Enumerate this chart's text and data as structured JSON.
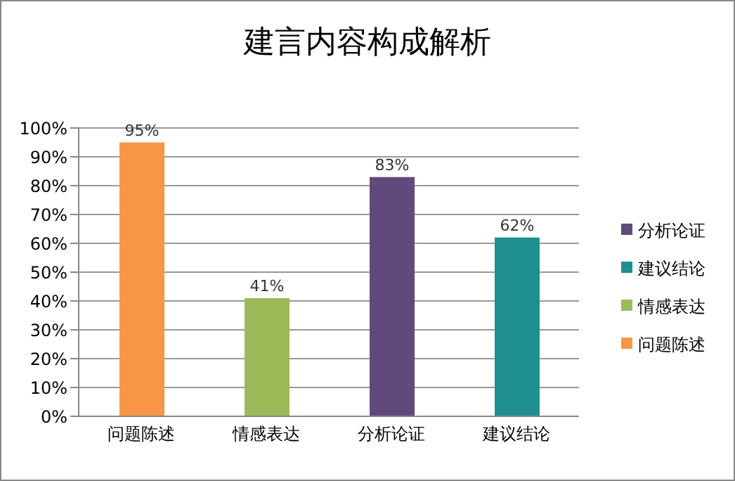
{
  "chart_data": {
    "type": "bar",
    "title": "建言内容构成解析",
    "categories": [
      "问题陈述",
      "情感表达",
      "分析论证",
      "建议结论"
    ],
    "series": [
      {
        "name": "问题陈述",
        "color": "#f79646",
        "values": [
          95,
          null,
          null,
          null
        ],
        "value_labels": [
          "95%",
          null,
          null,
          null
        ]
      },
      {
        "name": "情感表达",
        "color": "#9bbb59",
        "values": [
          null,
          41,
          null,
          null
        ],
        "value_labels": [
          null,
          "41%",
          null,
          null
        ]
      },
      {
        "name": "分析论证",
        "color": "#604a7b",
        "values": [
          null,
          null,
          83,
          null
        ],
        "value_labels": [
          null,
          null,
          "83%",
          null
        ]
      },
      {
        "name": "建议结论",
        "color": "#1f8f8f",
        "values": [
          null,
          null,
          null,
          62
        ],
        "value_labels": [
          null,
          null,
          null,
          "62%"
        ]
      }
    ],
    "stacked": true,
    "ylim": [
      0,
      100
    ],
    "yticks": [
      {
        "value": 0,
        "label": "0%"
      },
      {
        "value": 10,
        "label": "10%"
      },
      {
        "value": 20,
        "label": "20%"
      },
      {
        "value": 30,
        "label": "30%"
      },
      {
        "value": 40,
        "label": "40%"
      },
      {
        "value": 50,
        "label": "50%"
      },
      {
        "value": 60,
        "label": "60%"
      },
      {
        "value": 70,
        "label": "70%"
      },
      {
        "value": 80,
        "label": "80%"
      },
      {
        "value": 90,
        "label": "90%"
      },
      {
        "value": 100,
        "label": "100%"
      }
    ],
    "grid": "y",
    "legend": "right"
  }
}
